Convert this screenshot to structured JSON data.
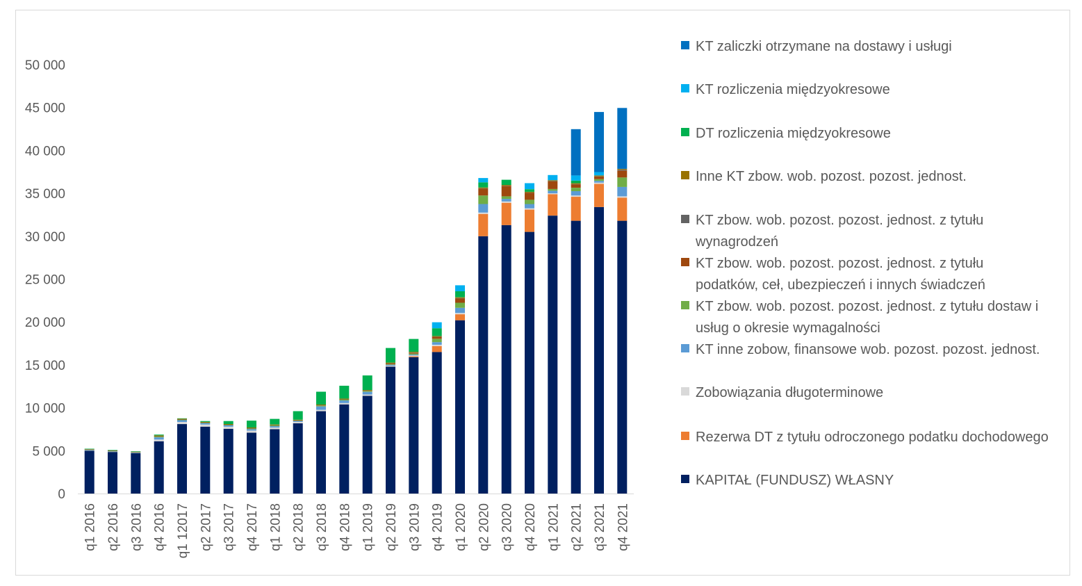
{
  "chart_data": {
    "type": "bar",
    "stacked": true,
    "ylim": [
      0,
      50000
    ],
    "yticks": [
      "0",
      "5 000",
      "10 000",
      "15 000",
      "20 000",
      "25 000",
      "30 000",
      "35 000",
      "40 000",
      "45 000",
      "50 000"
    ],
    "categories": [
      "q1 2016",
      "q2 2016",
      "q3 2016",
      "q4 2016",
      "q1 12017",
      "q2 2017",
      "q3 2017",
      "q4 2017",
      "q1 2018",
      "q2 2018",
      "q3 2018",
      "q4 2018",
      "q1 2019",
      "q2 2019",
      "q3 2019",
      "q4 2019",
      "q1 2020",
      "q2 2020",
      "q3 2020",
      "q4 2020",
      "q1 2021",
      "q2 2021",
      "q3 2021",
      "q4 2021"
    ],
    "legend_position": "right",
    "series": [
      {
        "name": "KAPITAŁ (FUNDUSZ) WŁASNY",
        "color": "#002060",
        "values": [
          5000,
          4850,
          4700,
          6100,
          8100,
          7800,
          7550,
          7100,
          7500,
          8200,
          9600,
          10400,
          11400,
          14800,
          15900,
          16500,
          20200,
          30000,
          31300,
          30500,
          32400,
          31800,
          33400,
          31800
        ]
      },
      {
        "name": "Rezerwa DT z tytułu odroczonego podatku dochodowego",
        "color": "#ed7d31",
        "values": [
          0,
          0,
          0,
          0,
          0,
          0,
          0,
          0,
          0,
          0,
          0,
          0,
          0,
          0,
          100,
          700,
          700,
          2600,
          2600,
          2600,
          2500,
          2800,
          2700,
          2700
        ]
      },
      {
        "name": "Zobowiązania długoterminowe",
        "color": "#d9d9d9",
        "values": [
          50,
          50,
          50,
          200,
          250,
          250,
          250,
          250,
          200,
          150,
          150,
          150,
          150,
          100,
          100,
          150,
          150,
          150,
          150,
          150,
          100,
          150,
          150,
          150
        ]
      },
      {
        "name": "KT inne zobow, finansowe wob. pozost. pozost. jednost.",
        "color": "#5b9bd5",
        "values": [
          30,
          30,
          30,
          250,
          200,
          150,
          150,
          150,
          150,
          100,
          400,
          300,
          300,
          100,
          100,
          300,
          600,
          1000,
          300,
          500,
          300,
          500,
          200,
          1100
        ]
      },
      {
        "name": "KT zbow. wob. pozost. pozost. jednost. z tytułu dostaw i usług o okresie wymagalności",
        "color": "#70ad47",
        "values": [
          30,
          30,
          30,
          100,
          50,
          50,
          50,
          100,
          100,
          50,
          100,
          100,
          100,
          50,
          100,
          400,
          600,
          1000,
          300,
          500,
          200,
          400,
          200,
          1100
        ]
      },
      {
        "name": "KT zbow. wob. pozost. pozost. jednost. z tytułu podatków, ceł, ubezpieczeń i innych świadczeń",
        "color": "#9e480e",
        "values": [
          0,
          0,
          0,
          0,
          0,
          0,
          0,
          0,
          0,
          0,
          0,
          0,
          0,
          100,
          100,
          200,
          500,
          800,
          1200,
          800,
          900,
          400,
          300,
          800
        ]
      },
      {
        "name": "KT zbow. wob. pozost. pozost. jednost. z tytułu wynagrodzeń",
        "color": "#636363",
        "values": [
          20,
          20,
          20,
          20,
          20,
          20,
          20,
          20,
          20,
          20,
          20,
          20,
          20,
          20,
          20,
          20,
          30,
          30,
          30,
          30,
          30,
          30,
          30,
          100
        ]
      },
      {
        "name": "Inne KT zbow. wob. pozost. pozost. jednost.",
        "color": "#997300",
        "values": [
          50,
          50,
          50,
          100,
          100,
          80,
          80,
          80,
          80,
          80,
          100,
          100,
          100,
          100,
          100,
          100,
          100,
          100,
          100,
          100,
          100,
          100,
          100,
          100
        ]
      },
      {
        "name": "DT rozliczenia międzyokresowe",
        "color": "#00b050",
        "values": [
          50,
          50,
          50,
          100,
          50,
          100,
          350,
          800,
          650,
          1000,
          1500,
          1500,
          1700,
          1700,
          1500,
          900,
          700,
          600,
          600,
          300,
          0,
          300,
          0,
          0
        ]
      },
      {
        "name": "KT rozliczenia międzyokresowe",
        "color": "#00b0f0",
        "values": [
          0,
          0,
          0,
          0,
          0,
          0,
          0,
          0,
          0,
          0,
          0,
          0,
          0,
          0,
          0,
          700,
          700,
          500,
          0,
          700,
          600,
          600,
          400,
          0
        ]
      },
      {
        "name": "KT zaliczki otrzymane na dostawy i usługi",
        "color": "#0070c0",
        "values": [
          0,
          0,
          0,
          0,
          0,
          0,
          0,
          0,
          0,
          0,
          0,
          0,
          0,
          0,
          0,
          0,
          0,
          0,
          0,
          0,
          0,
          5400,
          7000,
          7100
        ]
      }
    ]
  }
}
